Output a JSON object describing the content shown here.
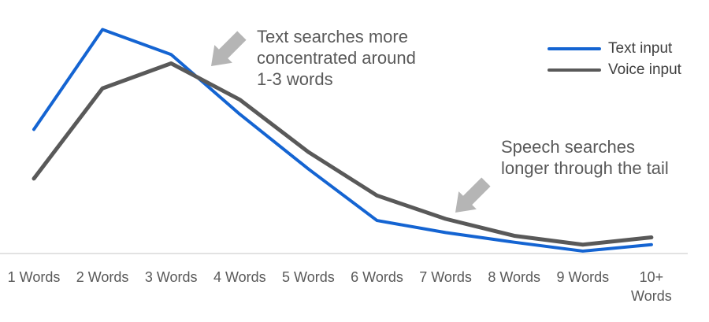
{
  "chart_data": {
    "type": "line",
    "title": "",
    "xlabel": "",
    "ylabel": "",
    "categories": [
      "1 Words",
      "2 Words",
      "3 Words",
      "4 Words",
      "5 Words",
      "6 Words",
      "7 Words",
      "8 Words",
      "9 Words",
      "10+\nWords"
    ],
    "series": [
      {
        "name": "Text input",
        "color": "#1464D2",
        "values": [
          15.4,
          27.8,
          24.7,
          17.3,
          10.5,
          4.1,
          2.6,
          1.4,
          0.3,
          1.1
        ]
      },
      {
        "name": "Voice input",
        "color": "#595959",
        "values": [
          9.3,
          20.5,
          23.6,
          19.1,
          12.6,
          7.2,
          4.3,
          2.2,
          1.1,
          2.0
        ]
      }
    ],
    "ylim": [
      0,
      30
    ],
    "y_axis_visible": false,
    "grid": false,
    "legend_position": "top-right"
  },
  "annotations": [
    {
      "text": "Text searches more\nconcentrated around\n1-3 words",
      "arrow": "down-left"
    },
    {
      "text": "Speech searches\nlonger through the tail",
      "arrow": "down-left"
    }
  ],
  "colors": {
    "text_input_line": "#1464D2",
    "voice_input_line": "#595959",
    "annotation_text": "#595959",
    "arrow_fill": "#B5B5B5",
    "axis_line": "#D9D9D9",
    "tick_label": "#595959",
    "legend_text": "#404040",
    "background": "#FFFFFF"
  }
}
